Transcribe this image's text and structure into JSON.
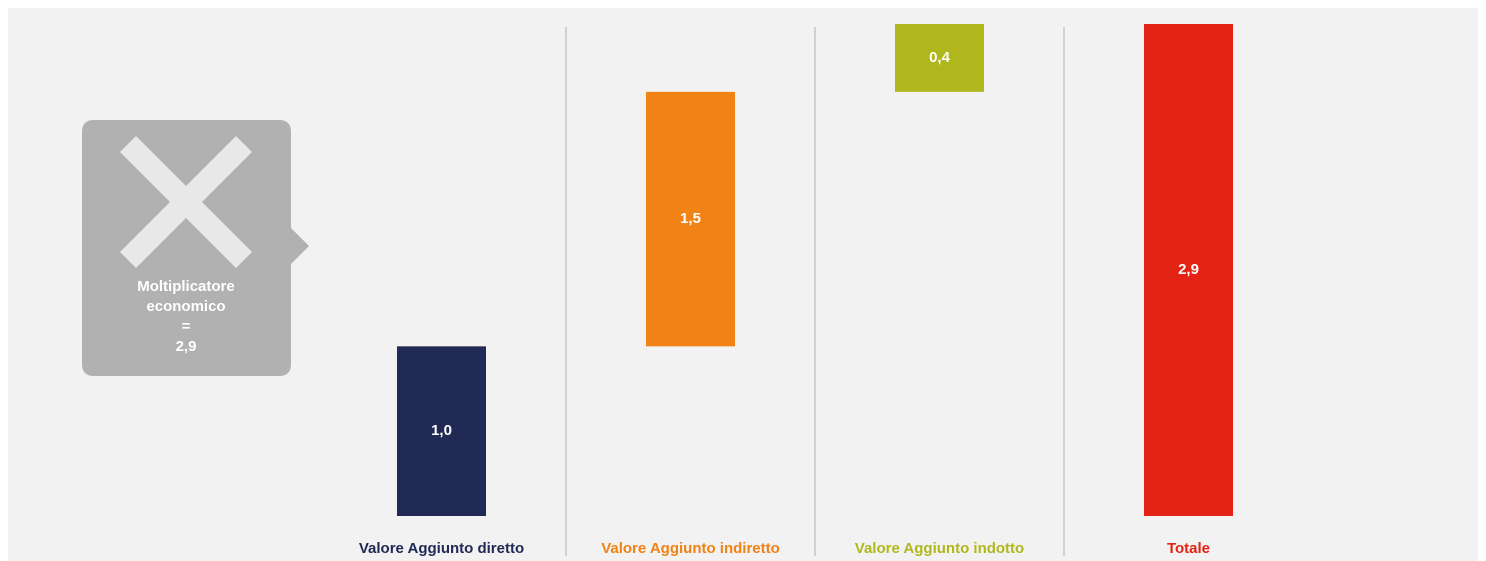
{
  "chart_data": {
    "type": "waterfall",
    "categories": [
      "Valore Aggiunto diretto",
      "Valore Aggiunto indiretto",
      "Valore Aggiunto indotto",
      "Totale"
    ],
    "values": [
      1.0,
      1.5,
      0.4,
      2.9
    ],
    "value_labels": [
      "1,0",
      "1,5",
      "0,4",
      "2,9"
    ],
    "measure": [
      "relative",
      "relative",
      "relative",
      "total"
    ],
    "colors": [
      "#212a54",
      "#f08216",
      "#b0b71d",
      "#e32313"
    ],
    "callout": {
      "lines": [
        "Moltiplicatore",
        "economico",
        "=",
        "2,9"
      ]
    }
  }
}
